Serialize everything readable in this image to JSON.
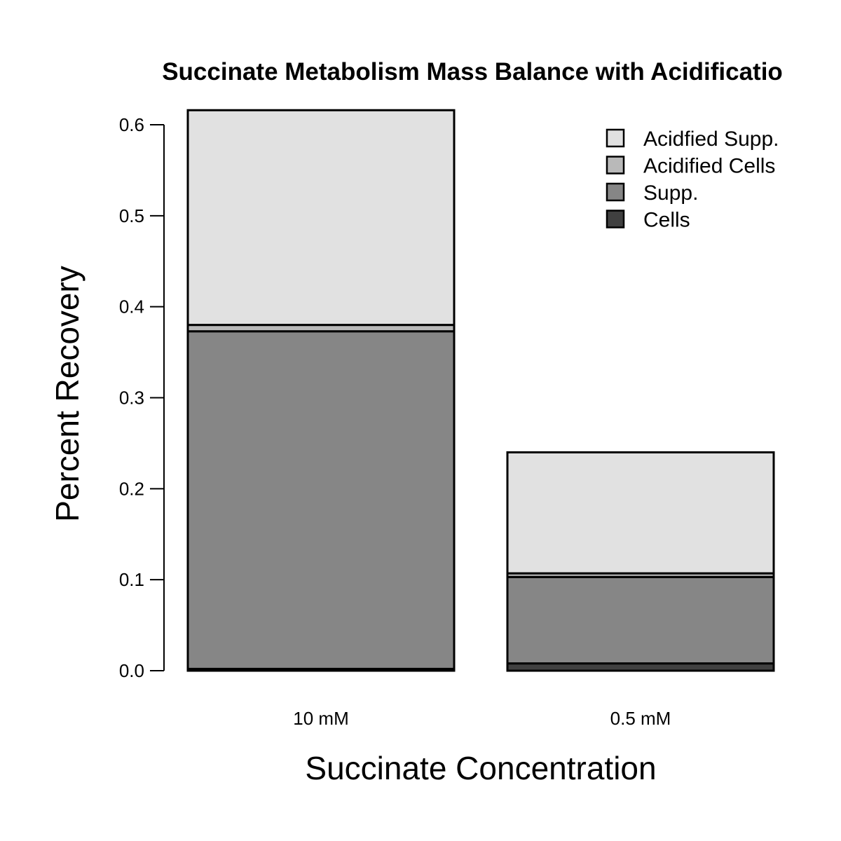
{
  "chart_data": {
    "type": "bar",
    "stacked": true,
    "title": "Succinate Metabolism Mass Balance with Acidificatio",
    "xlabel": "Succinate Concentration",
    "ylabel": "Percent Recovery",
    "categories": [
      "10 mM",
      "0.5 mM"
    ],
    "ylim": [
      0,
      0.6
    ],
    "yticks": [
      "0.0",
      "0.1",
      "0.2",
      "0.3",
      "0.4",
      "0.5",
      "0.6"
    ],
    "grid": false,
    "legend_position": "top-right",
    "series": [
      {
        "name": "Cells",
        "color": "#404040",
        "values": [
          0.002,
          0.008
        ]
      },
      {
        "name": "Supp.",
        "color": "#868686",
        "values": [
          0.371,
          0.095
        ]
      },
      {
        "name": "Acidified Cells",
        "color": "#b9b9b9",
        "values": [
          0.007,
          0.004
        ]
      },
      {
        "name": "Acidfied Supp.",
        "color": "#e1e1e1",
        "values": [
          0.236,
          0.133
        ]
      }
    ],
    "legend_order": [
      "Acidfied Supp.",
      "Acidified Cells",
      "Supp.",
      "Cells"
    ]
  }
}
